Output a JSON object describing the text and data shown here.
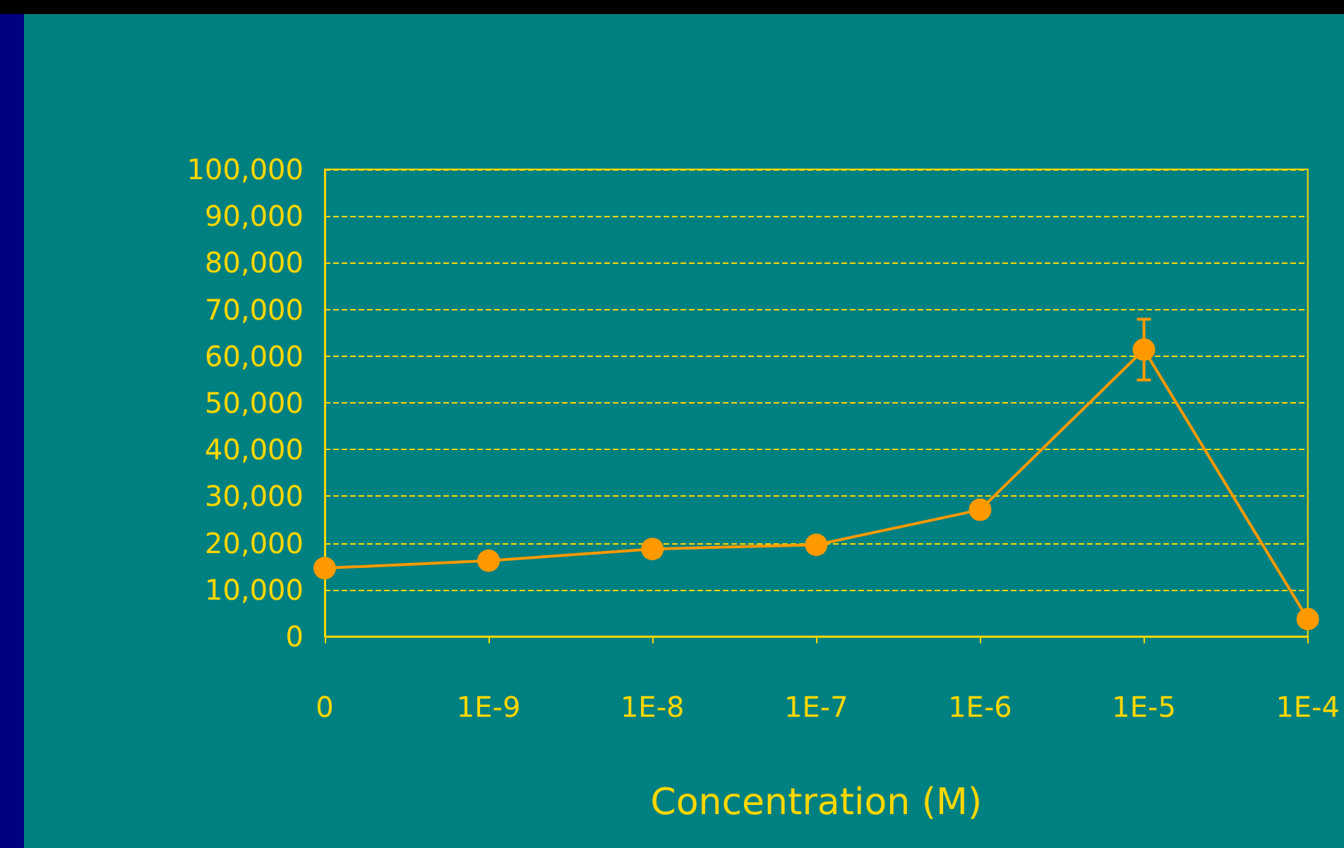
{
  "chart_data": {
    "type": "line",
    "xlabel": "Concentration (M)",
    "categories": [
      "0",
      "1E-9",
      "1E-8",
      "1E-7",
      "1E-6",
      "1E-5",
      "1E-4"
    ],
    "values": [
      14600,
      16200,
      18700,
      19600,
      27100,
      61400,
      3700
    ],
    "errors": [
      null,
      null,
      null,
      null,
      null,
      6500,
      null
    ],
    "color": "#ff9900",
    "marker": "circle",
    "line_style": "solid",
    "ylim": [
      0,
      100000
    ],
    "yticks": [
      0,
      {
        "value": 10000,
        "label": "10,000"
      },
      {
        "value": 20000,
        "label": "20,000"
      },
      {
        "value": 30000,
        "label": "30,000"
      },
      {
        "value": 40000,
        "label": "40,000"
      },
      {
        "value": 50000,
        "label": "50,000"
      },
      {
        "value": 60000,
        "label": "60,000"
      },
      {
        "value": 70000,
        "label": "70,000"
      },
      {
        "value": 80000,
        "label": "80,000"
      },
      {
        "value": 90000,
        "label": "90,000"
      },
      {
        "value": 100000,
        "label": "100,000"
      }
    ],
    "grid": "y"
  }
}
